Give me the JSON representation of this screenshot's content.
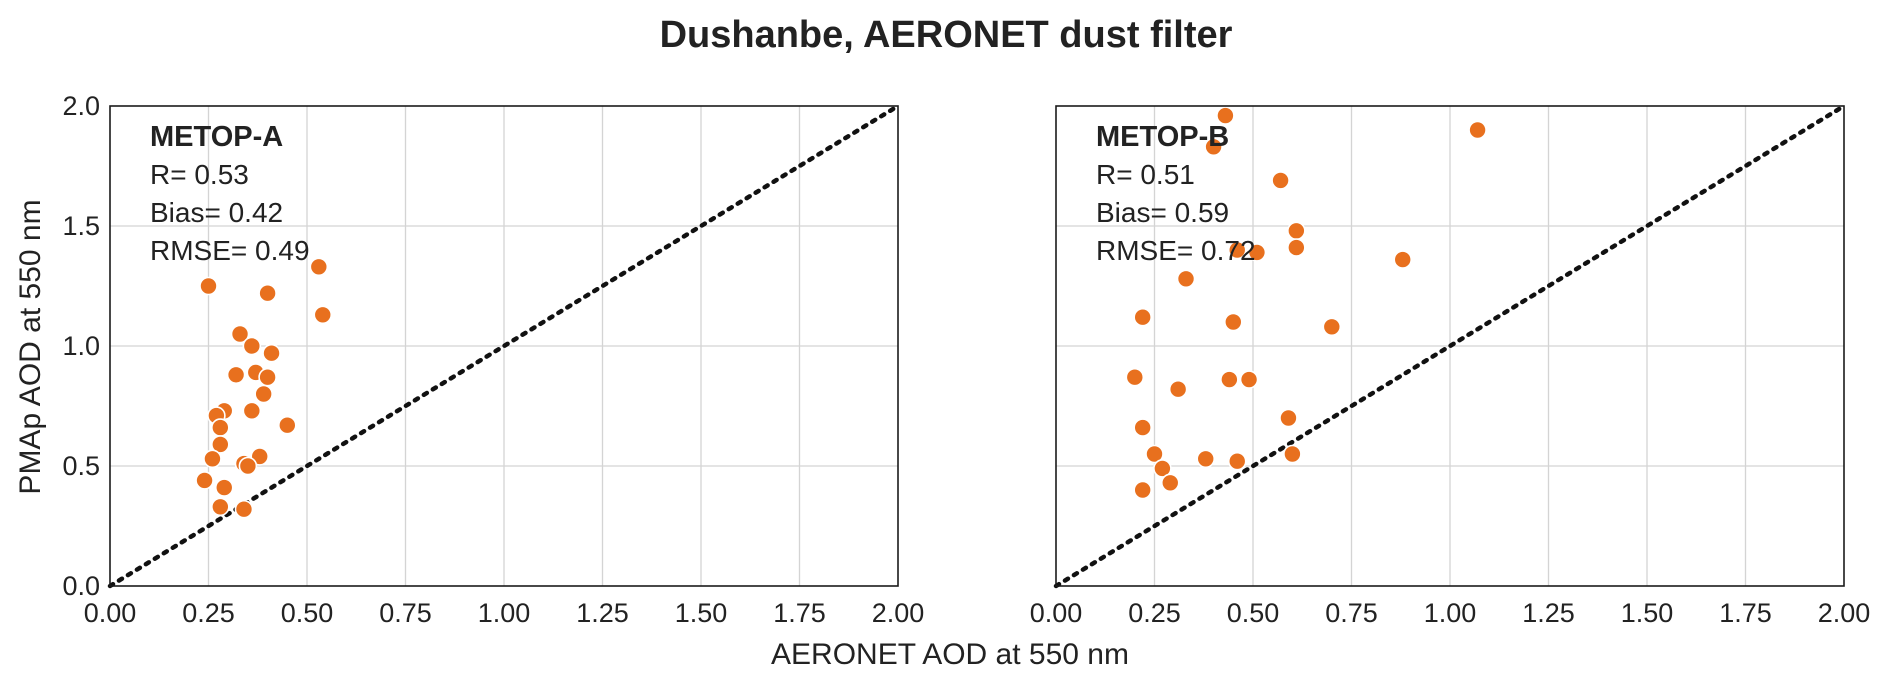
{
  "title": "Dushanbe, AERONET dust filter",
  "xlabel": "AERONET AOD at 550 nm",
  "ylabel": "PMAp AOD at 550 nm",
  "colors": {
    "marker": "#e8701e",
    "diagonal": "#111111",
    "grid": "#d4d4d4"
  },
  "chart_data": [
    {
      "type": "scatter",
      "panel": "left",
      "annotation": {
        "name": "METOP-A",
        "r": "R= 0.53",
        "bias": "Bias= 0.42",
        "rmse": "RMSE= 0.49"
      },
      "xlim": [
        0,
        2
      ],
      "ylim": [
        0,
        2
      ],
      "xticks": [
        "0.00",
        "0.25",
        "0.50",
        "0.75",
        "1.00",
        "1.25",
        "1.50",
        "1.75",
        "2.00"
      ],
      "yticks": [
        "0.0",
        "0.5",
        "1.0",
        "1.5",
        "2.0"
      ],
      "grid": true,
      "reference_line": "y = x (dotted)",
      "points": [
        [
          0.25,
          1.25
        ],
        [
          0.53,
          1.33
        ],
        [
          0.4,
          1.22
        ],
        [
          0.54,
          1.13
        ],
        [
          0.33,
          1.05
        ],
        [
          0.36,
          1.0
        ],
        [
          0.41,
          0.97
        ],
        [
          0.32,
          0.88
        ],
        [
          0.37,
          0.89
        ],
        [
          0.4,
          0.87
        ],
        [
          0.39,
          0.8
        ],
        [
          0.36,
          0.73
        ],
        [
          0.29,
          0.73
        ],
        [
          0.27,
          0.71
        ],
        [
          0.28,
          0.66
        ],
        [
          0.45,
          0.67
        ],
        [
          0.28,
          0.59
        ],
        [
          0.26,
          0.53
        ],
        [
          0.38,
          0.54
        ],
        [
          0.34,
          0.51
        ],
        [
          0.35,
          0.5
        ],
        [
          0.24,
          0.44
        ],
        [
          0.29,
          0.41
        ],
        [
          0.28,
          0.33
        ],
        [
          0.34,
          0.32
        ]
      ]
    },
    {
      "type": "scatter",
      "panel": "right",
      "annotation": {
        "name": "METOP-B",
        "r": "R= 0.51",
        "bias": "Bias= 0.59",
        "rmse": "RMSE= 0.72"
      },
      "xlim": [
        0,
        2
      ],
      "ylim": [
        0,
        2
      ],
      "xticks": [
        "0.00",
        "0.25",
        "0.50",
        "0.75",
        "1.00",
        "1.25",
        "1.50",
        "1.75",
        "2.00"
      ],
      "yticks": [],
      "grid": true,
      "reference_line": "y = x (dotted)",
      "points": [
        [
          0.43,
          1.96
        ],
        [
          1.07,
          1.9
        ],
        [
          0.4,
          1.83
        ],
        [
          0.57,
          1.69
        ],
        [
          0.61,
          1.48
        ],
        [
          0.61,
          1.41
        ],
        [
          0.46,
          1.4
        ],
        [
          0.51,
          1.39
        ],
        [
          0.88,
          1.36
        ],
        [
          0.33,
          1.28
        ],
        [
          0.22,
          1.12
        ],
        [
          0.45,
          1.1
        ],
        [
          0.7,
          1.08
        ],
        [
          0.2,
          0.87
        ],
        [
          0.44,
          0.86
        ],
        [
          0.49,
          0.86
        ],
        [
          0.31,
          0.82
        ],
        [
          0.59,
          0.7
        ],
        [
          0.22,
          0.66
        ],
        [
          0.25,
          0.55
        ],
        [
          0.6,
          0.55
        ],
        [
          0.38,
          0.53
        ],
        [
          0.46,
          0.52
        ],
        [
          0.27,
          0.49
        ],
        [
          0.29,
          0.43
        ],
        [
          0.22,
          0.4
        ]
      ]
    }
  ]
}
